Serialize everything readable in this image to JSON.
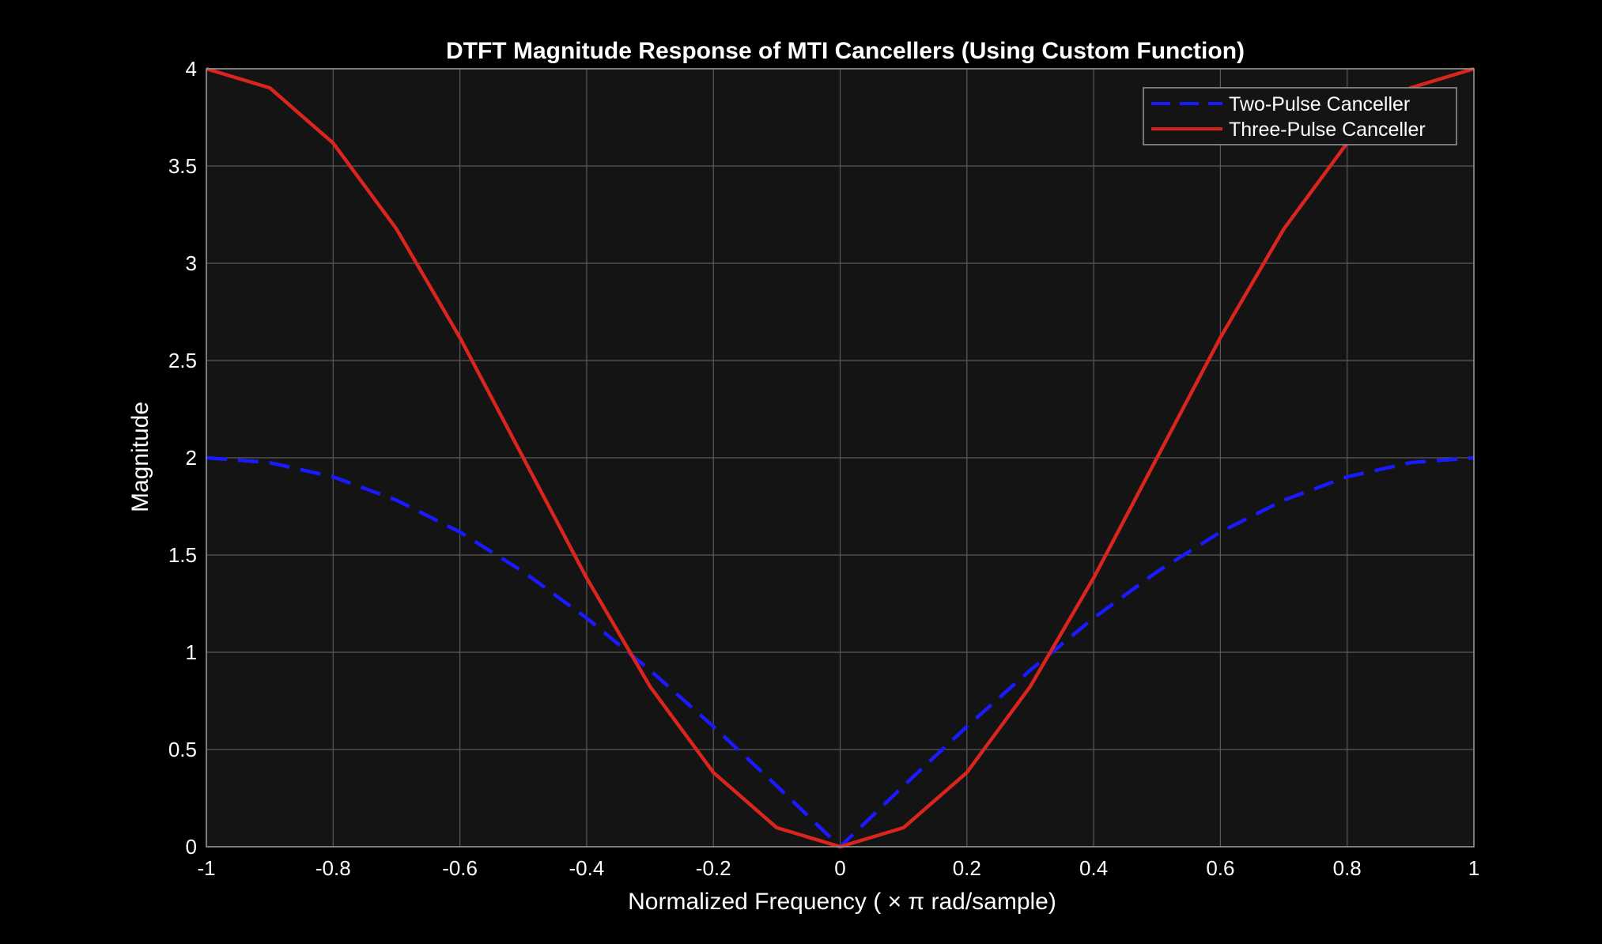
{
  "chart_data": {
    "type": "line",
    "title": "DTFT Magnitude Response of MTI Cancellers (Using Custom Function)",
    "xlabel": "Normalized  Frequency  ( ×  π  rad/sample)",
    "ylabel": "Magnitude",
    "xlim": [
      -1,
      1
    ],
    "ylim": [
      0,
      4
    ],
    "grid": true,
    "legend_position": "top-right",
    "x_ticks": [
      -1,
      -0.8,
      -0.6,
      -0.4,
      -0.2,
      0,
      0.2,
      0.4,
      0.6,
      0.8,
      1
    ],
    "x_tick_labels": [
      "-1",
      "-0.8",
      "-0.6",
      "-0.4",
      "-0.2",
      "0",
      "0.2",
      "0.4",
      "0.6",
      "0.8",
      "1"
    ],
    "y_ticks": [
      0,
      0.5,
      1,
      1.5,
      2,
      2.5,
      3,
      3.5,
      4
    ],
    "y_tick_labels": [
      "0",
      "0.5",
      "1",
      "1.5",
      "2",
      "2.5",
      "3",
      "3.5",
      "4"
    ],
    "x": [
      -1.0,
      -0.9,
      -0.8,
      -0.7,
      -0.6,
      -0.5,
      -0.4,
      -0.3,
      -0.2,
      -0.1,
      0.0,
      0.1,
      0.2,
      0.3,
      0.4,
      0.5,
      0.6,
      0.7,
      0.8,
      0.9,
      1.0
    ],
    "series": [
      {
        "name": "Two-Pulse Canceller",
        "style": "dashed",
        "color": "#1a1aff",
        "values": [
          2.0,
          1.975,
          1.902,
          1.782,
          1.618,
          1.414,
          1.176,
          0.908,
          0.618,
          0.313,
          0.0,
          0.313,
          0.618,
          0.908,
          1.176,
          1.414,
          1.618,
          1.782,
          1.902,
          1.975,
          2.0
        ]
      },
      {
        "name": "Three-Pulse Canceller",
        "style": "solid",
        "color": "#d9251d",
        "values": [
          4.0,
          3.902,
          3.618,
          3.176,
          2.618,
          2.0,
          1.382,
          0.824,
          0.382,
          0.098,
          0.0,
          0.098,
          0.382,
          0.824,
          1.382,
          2.0,
          2.618,
          3.176,
          3.618,
          3.902,
          4.0
        ]
      }
    ]
  },
  "colors": {
    "figure_background": "#000000",
    "axes_background": "#141414",
    "grid": "#5a5a5a",
    "axes_border": "#9a9a9a",
    "text": "#ffffff"
  }
}
